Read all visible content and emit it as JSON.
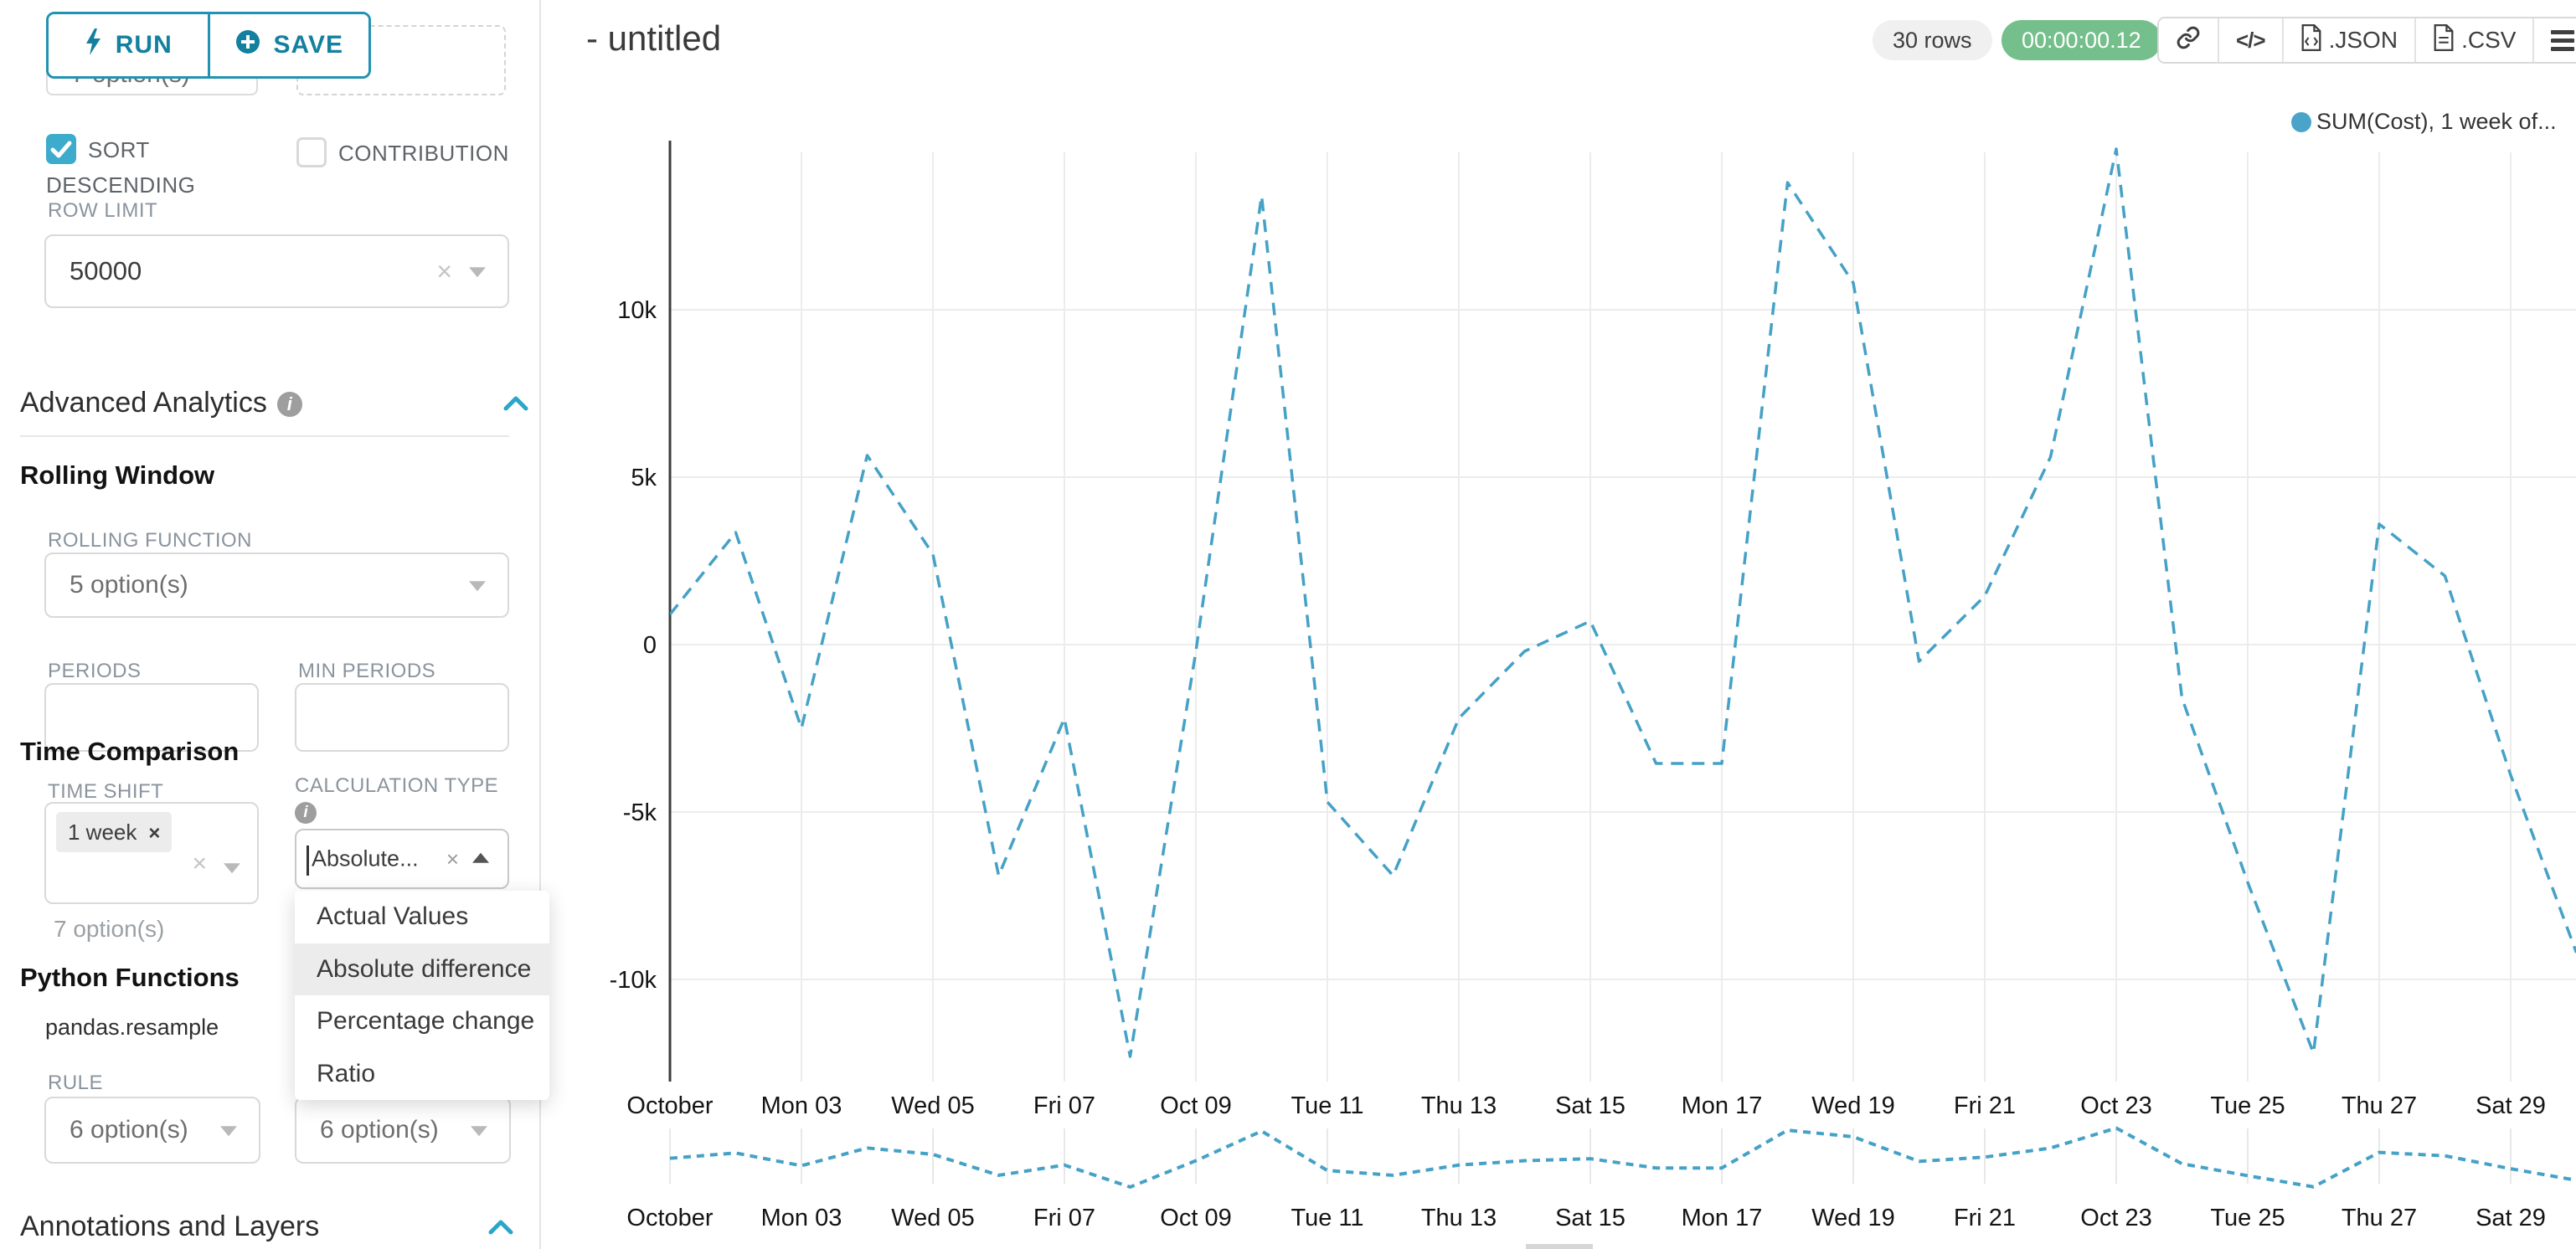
{
  "topbar": {
    "run_label": "RUN",
    "save_label": "SAVE"
  },
  "icons": {
    "clear_x": "×",
    "tag_close": "×",
    "code": "</>"
  },
  "sidebar": {
    "cut_select_value": "7 option(s)",
    "sort_descending": {
      "label": "SORT DESCENDING",
      "checked": true
    },
    "contribution": {
      "label": "CONTRIBUTION",
      "checked": false
    },
    "row_limit": {
      "label": "ROW LIMIT",
      "value": "50000"
    },
    "advanced_analytics": {
      "title": "Advanced Analytics"
    },
    "rolling_window": {
      "title": "Rolling Window",
      "function_label": "ROLLING FUNCTION",
      "function_value": "5 option(s)",
      "periods_label": "PERIODS",
      "min_periods_label": "MIN PERIODS"
    },
    "time_comparison": {
      "title": "Time Comparison",
      "time_shift_label": "TIME SHIFT",
      "time_shift_tag": "1 week",
      "time_shift_helper": "7 option(s)",
      "calculation_type_label": "CALCULATION TYPE",
      "calculation_type_value": "Absolute...",
      "options": [
        "Actual Values",
        "Absolute difference",
        "Percentage change",
        "Ratio"
      ],
      "selected_option": "Absolute difference"
    },
    "python_functions": {
      "title": "Python Functions",
      "subtitle": "pandas.resample",
      "rule_label": "RULE",
      "rule_value": "6 option(s)",
      "rule2_value": "6 option(s)"
    },
    "annotations": {
      "title": "Annotations and Layers"
    }
  },
  "header": {
    "title": "- untitled",
    "rows_badge": "30 rows",
    "timer_badge": "00:00:00.12",
    "json_label": ".JSON",
    "csv_label": ".CSV"
  },
  "legend": {
    "label": "SUM(Cost), 1 week of...",
    "color": "#4aa3c8"
  },
  "colors": {
    "accent_teal": "#20a7c9",
    "line_blue": "#45a1c6",
    "timer_green": "#74bf8b",
    "grid_gray": "#ececec"
  },
  "chart_data": {
    "type": "line",
    "title": "",
    "xlabel": "",
    "ylabel": "",
    "legend_position": "top-right",
    "grid": true,
    "line_style": "dashed",
    "line_color": "#45a1c6",
    "series": [
      {
        "name": "SUM(Cost), 1 week of...",
        "values": [
          900,
          3350,
          -2500,
          5650,
          2700,
          -6900,
          -2200,
          -12300,
          -200,
          13400,
          -4700,
          -6900,
          -2200,
          -200,
          700,
          -3550,
          -3550,
          13800,
          10800,
          -500,
          1450,
          5600,
          14800,
          -1600,
          -7100,
          -12200,
          3600,
          2050,
          -3900,
          -9200
        ]
      }
    ],
    "x_tick_labels": [
      "October",
      "Mon 03",
      "Wed 05",
      "Fri 07",
      "Oct 09",
      "Tue 11",
      "Thu 13",
      "Sat 15",
      "Mon 17",
      "Wed 19",
      "Fri 21",
      "Oct 23",
      "Tue 25",
      "Thu 27",
      "Sat 29"
    ],
    "x_tick_every_days": 2,
    "y_ticks": [
      {
        "v": 10000,
        "label": "10k"
      },
      {
        "v": 5000,
        "label": "5k"
      },
      {
        "v": 0,
        "label": "0"
      },
      {
        "v": -5000,
        "label": "-5k"
      },
      {
        "v": -10000,
        "label": "-10k"
      }
    ],
    "ylim": [
      -13000,
      14750
    ],
    "has_mini_preview": true
  }
}
